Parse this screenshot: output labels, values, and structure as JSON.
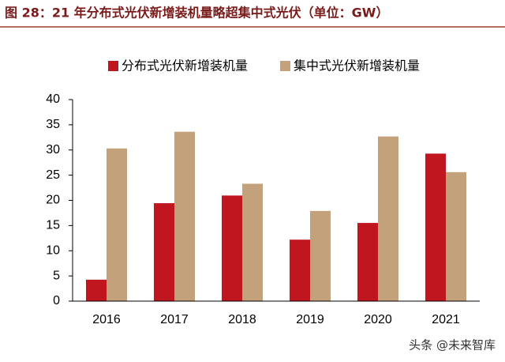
{
  "chart_data": {
    "type": "bar",
    "title": "图 28：21 年分布式光伏新增装机量略超集中式光伏（单位：GW）",
    "categories": [
      "2016",
      "2017",
      "2018",
      "2019",
      "2020",
      "2021"
    ],
    "series": [
      {
        "name": "分布式光伏新增装机量",
        "color": "#c0161f",
        "values": [
          4.26,
          19.44,
          20.96,
          12.2,
          15.52,
          29.28
        ]
      },
      {
        "name": "集中式光伏新增装机量",
        "color": "#c3a17a",
        "values": [
          30.31,
          33.62,
          23.3,
          17.9,
          32.68,
          25.6
        ]
      }
    ],
    "ylim": [
      0,
      40
    ],
    "yticks": [
      0,
      5,
      10,
      15,
      20,
      25,
      30,
      35,
      40
    ],
    "legend": "top",
    "watermark": "头条 @未来智库"
  }
}
